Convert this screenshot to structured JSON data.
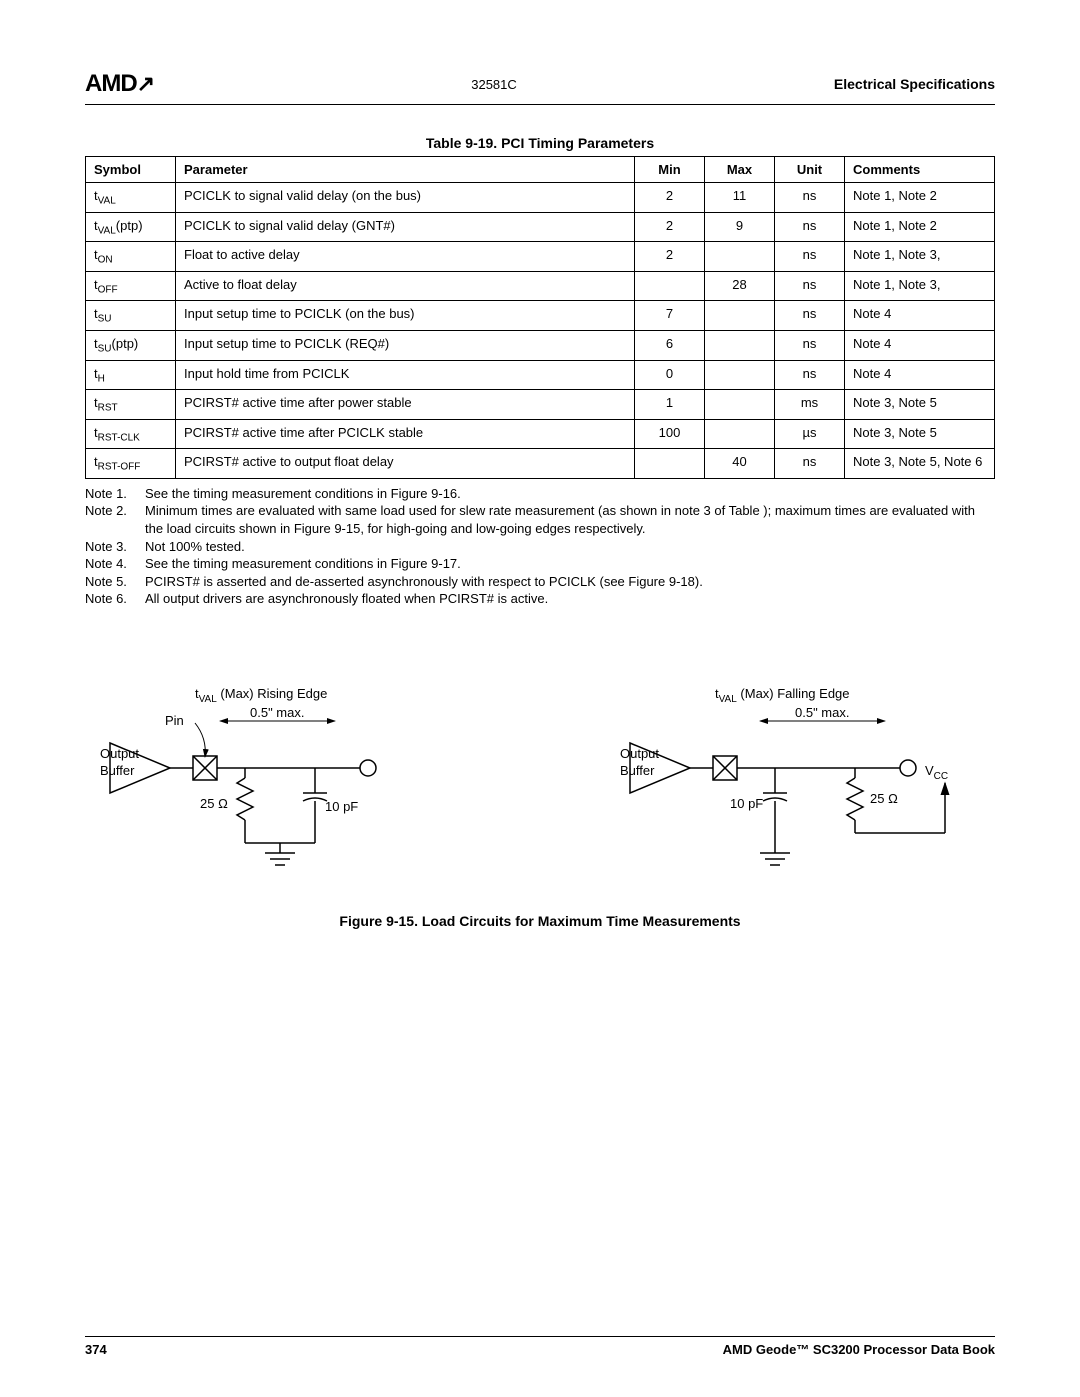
{
  "header": {
    "logo": "AMD",
    "docnum": "32581C",
    "section": "Electrical Specifications"
  },
  "table_title": "Table 9-19.  PCI Timing Parameters",
  "columns": [
    "Symbol",
    "Parameter",
    "Min",
    "Max",
    "Unit",
    "Comments"
  ],
  "rows": [
    {
      "sym": "t",
      "sub": "VAL",
      "param": "PCICLK to signal valid delay (on the bus)",
      "min": "2",
      "max": "11",
      "unit": "ns",
      "comm": "Note 1, Note 2"
    },
    {
      "sym": "t",
      "sub": "VAL",
      "suffix": "(ptp)",
      "param": "PCICLK to signal valid delay (GNT#)",
      "min": "2",
      "max": "9",
      "unit": "ns",
      "comm": "Note 1, Note 2"
    },
    {
      "sym": "t",
      "sub": "ON",
      "param": "Float to active delay",
      "min": "2",
      "max": "",
      "unit": "ns",
      "comm": "Note 1, Note 3,"
    },
    {
      "sym": "t",
      "sub": "OFF",
      "param": "Active to float delay",
      "min": "",
      "max": "28",
      "unit": "ns",
      "comm": "Note 1, Note 3,"
    },
    {
      "sym": "t",
      "sub": "SU",
      "param": "Input setup time to PCICLK (on the bus)",
      "min": "7",
      "max": "",
      "unit": "ns",
      "comm": "Note 4"
    },
    {
      "sym": "t",
      "sub": "SU",
      "suffix": "(ptp)",
      "param": "Input setup time to PCICLK (REQ#)",
      "min": "6",
      "max": "",
      "unit": "ns",
      "comm": "Note 4"
    },
    {
      "sym": "t",
      "sub": "H",
      "param": "Input hold time from PCICLK",
      "min": "0",
      "max": "",
      "unit": "ns",
      "comm": "Note 4"
    },
    {
      "sym": "t",
      "sub": "RST",
      "param": "PCIRST# active time after power stable",
      "min": "1",
      "max": "",
      "unit": "ms",
      "comm": "Note 3, Note 5"
    },
    {
      "sym": "t",
      "sub": "RST-CLK",
      "param": "PCIRST# active time after PCICLK stable",
      "min": "100",
      "max": "",
      "unit": "µs",
      "comm": "Note 3, Note 5"
    },
    {
      "sym": "t",
      "sub": "RST-OFF",
      "param": "PCIRST# active to output float delay",
      "min": "",
      "max": "40",
      "unit": "ns",
      "comm": "Note 3, Note 5, Note 6"
    }
  ],
  "notes": [
    {
      "n": "Note 1.",
      "t": "See the timing measurement conditions in Figure 9-16."
    },
    {
      "n": "Note 2.",
      "t": "Minimum times are evaluated with same load used for slew rate measurement (as shown in note 3 of Table ); maximum times are evaluated with the load circuits shown in Figure 9-15, for high-going and low-going edges respectively."
    },
    {
      "n": "Note 3.",
      "t": "Not 100% tested."
    },
    {
      "n": "Note 4.",
      "t": "See the timing measurement conditions in Figure 9-17."
    },
    {
      "n": "Note 5.",
      "t": "PCIRST# is asserted and de-asserted asynchronously with respect to PCICLK (see Figure 9-18)."
    },
    {
      "n": "Note 6.",
      "t": "All output drivers are asynchronously floated when PCIRST# is active."
    }
  ],
  "circuit_left": {
    "title_pre": "t",
    "title_sub": "VAL",
    "title_post": " (Max) Rising Edge",
    "pin": "Pin",
    "halfmax": "0.5\" max.",
    "output": "Output",
    "buffer": "Buffer",
    "r": "25 Ω",
    "c": "10 pF"
  },
  "circuit_right": {
    "title_pre": "t",
    "title_sub": "VAL",
    "title_post": " (Max) Falling Edge",
    "halfmax": "0.5\" max.",
    "output": "Output",
    "buffer": "Buffer",
    "r": "25 Ω",
    "c": "10 pF",
    "vcc": "V",
    "vcc_sub": "CC"
  },
  "figure_caption": "Figure 9-15.  Load Circuits for Maximum Time Measurements",
  "footer": {
    "page": "374",
    "book": "AMD Geode™ SC3200 Processor Data Book"
  }
}
